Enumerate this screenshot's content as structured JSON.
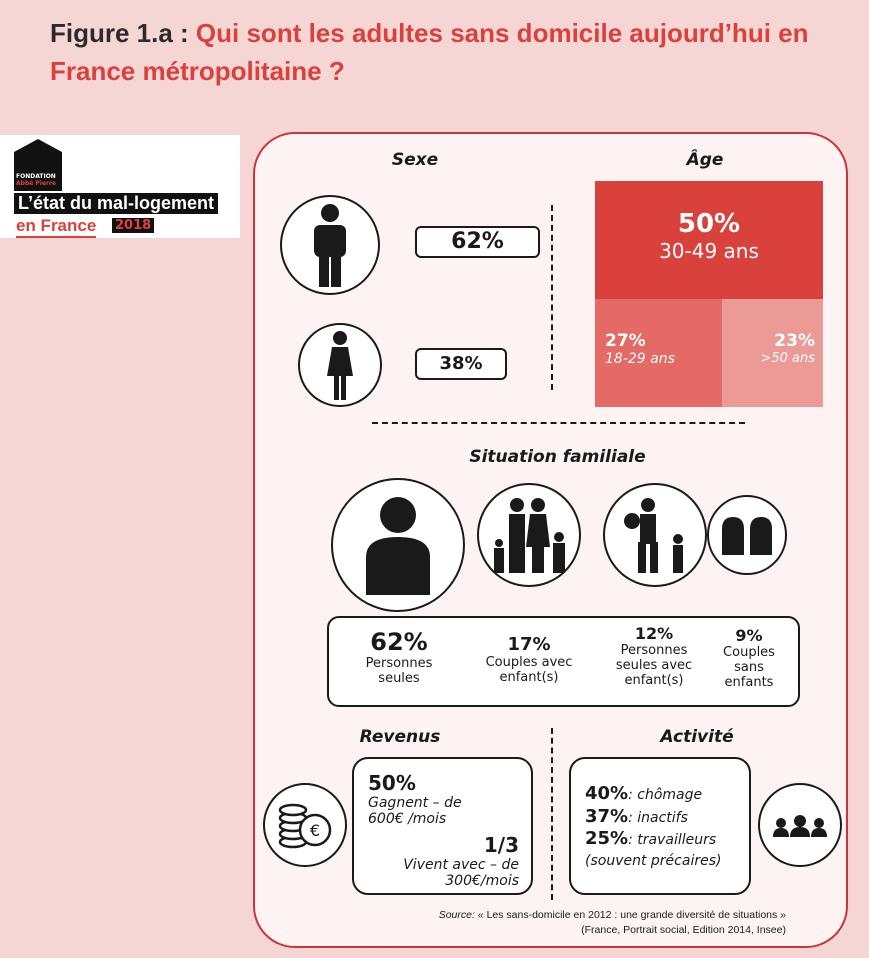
{
  "title": {
    "prefix": "Figure 1.a : ",
    "main": "Qui sont les adultes sans domicile aujourd’hui en France métropolitaine ?"
  },
  "logo": {
    "org": "FONDATION",
    "org2": "Abbé Pierre",
    "line1": "L’état du mal-logement",
    "line2": "en France",
    "year": "2018"
  },
  "sexe": {
    "heading": "Sexe",
    "men": "62%",
    "women": "38%"
  },
  "age": {
    "heading": "Âge",
    "main": {
      "value": "50%",
      "label": "30-49 ans"
    },
    "young": {
      "value": "27%",
      "label": "18-29 ans"
    },
    "old": {
      "value": "23%",
      "label": ">50 ans"
    }
  },
  "family": {
    "heading": "Situation familiale",
    "items": [
      {
        "value": "62%",
        "label": "Personnes seules"
      },
      {
        "value": "17%",
        "label": "Couples avec enfant(s)"
      },
      {
        "value": "12%",
        "label": "Personnes seules avec enfant(s)"
      },
      {
        "value": "9%",
        "label": "Couples sans enfants"
      }
    ]
  },
  "revenus": {
    "heading": "Revenus",
    "v1": "50%",
    "t1": "Gagnent – de 600€ /mois",
    "v2": "1/3",
    "t2": "Vivent avec – de 300€/mois"
  },
  "activite": {
    "heading": "Activité",
    "items": [
      {
        "value": "40%",
        "label": ": chômage"
      },
      {
        "value": "37%",
        "label": ": inactifs"
      },
      {
        "value": "25%",
        "label": ": travailleurs (souvent précaires)"
      }
    ]
  },
  "source": {
    "label": "Source:",
    "line1": " « Les sans-domicile en 2012 : une grande diversité de situations »",
    "line2": "(France, Portrait social, Edition 2014, Insee)"
  },
  "colors": {
    "red": "#d9413d",
    "mid": "#e56964",
    "light": "#ec9a96",
    "bg": "#f6d6d4"
  }
}
